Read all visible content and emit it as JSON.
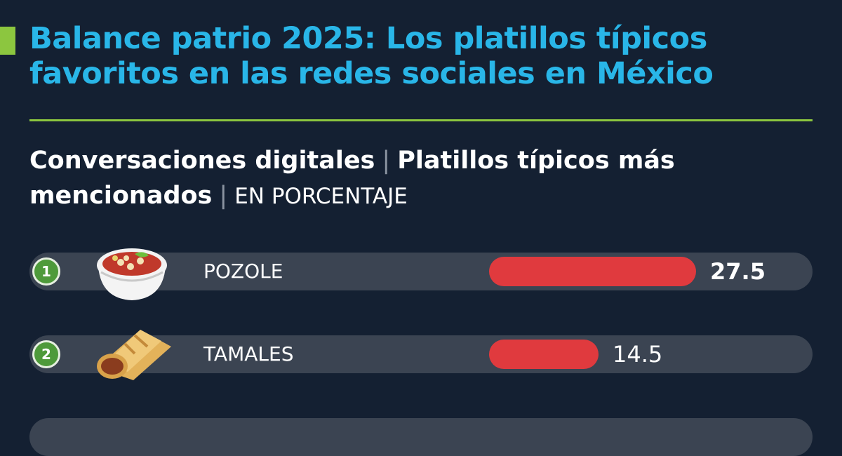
{
  "title": "Balance patrio 2025: Los platillos típicos favoritos en las redes sociales en México",
  "subtitle": {
    "part1": "Conversaciones digitales",
    "part2": "Platillos típicos más mencionados",
    "part3": "EN PORCENTAJE"
  },
  "colors": {
    "background": "#142032",
    "title": "#29b6e8",
    "accent_green": "#8cc63f",
    "bar": "#e03a3e",
    "track": "#3b4452",
    "rank_badge": "#4e9a3a"
  },
  "chart_data": {
    "type": "bar",
    "orientation": "horizontal",
    "categories": [
      "POZOLE",
      "TAMALES"
    ],
    "ranks": [
      "1",
      "2"
    ],
    "values": [
      27.5,
      14.5
    ],
    "value_labels": [
      "27.5",
      "14.5"
    ],
    "icons": [
      "pozole-bowl-icon",
      "tamal-icon"
    ],
    "xlim": [
      0,
      27.5
    ],
    "grid": false
  }
}
